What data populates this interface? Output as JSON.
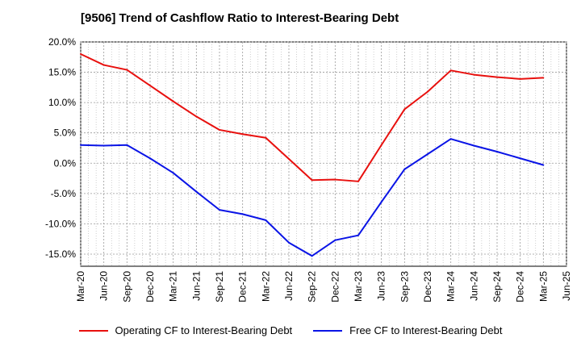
{
  "chart_data": {
    "type": "line",
    "title": "[9506]  Trend of Cashflow Ratio to Interest-Bearing Debt",
    "xlabel": "",
    "ylabel": "",
    "ylim": [
      -17,
      20
    ],
    "y_ticks": [
      "20.0%",
      "15.0%",
      "10.0%",
      "5.0%",
      "0.0%",
      "-5.0%",
      "-10.0%",
      "-15.0%"
    ],
    "y_tick_values": [
      20,
      15,
      10,
      5,
      0,
      -5,
      -10,
      -15
    ],
    "categories": [
      "Mar-20",
      "Jun-20",
      "Sep-20",
      "Dec-20",
      "Mar-21",
      "Jun-21",
      "Sep-21",
      "Dec-21",
      "Mar-22",
      "Jun-22",
      "Sep-22",
      "Dec-22",
      "Mar-23",
      "Jun-23",
      "Sep-23",
      "Dec-23",
      "Mar-24",
      "Jun-24",
      "Sep-24",
      "Dec-24",
      "Mar-25",
      "Jun-25"
    ],
    "grid": true,
    "legend_position": "bottom",
    "series": [
      {
        "name": "Operating CF to Interest-Bearing Debt",
        "color": "#e8100e",
        "values": [
          18.0,
          16.2,
          15.4,
          12.8,
          10.2,
          7.7,
          5.5,
          4.8,
          4.2,
          0.7,
          -2.8,
          -2.7,
          -3.0,
          3.0,
          8.9,
          11.8,
          15.3,
          14.6,
          14.2,
          13.9,
          14.1,
          null
        ]
      },
      {
        "name": "Free CF to Interest-Bearing Debt",
        "color": "#0a14e6",
        "values": [
          3.0,
          2.9,
          3.0,
          0.8,
          -1.6,
          -4.7,
          -7.7,
          -8.4,
          -9.4,
          -13.1,
          -15.3,
          -12.7,
          -11.9,
          -6.4,
          -1.0,
          1.5,
          4.0,
          2.9,
          1.9,
          0.8,
          -0.3,
          null
        ]
      }
    ]
  }
}
